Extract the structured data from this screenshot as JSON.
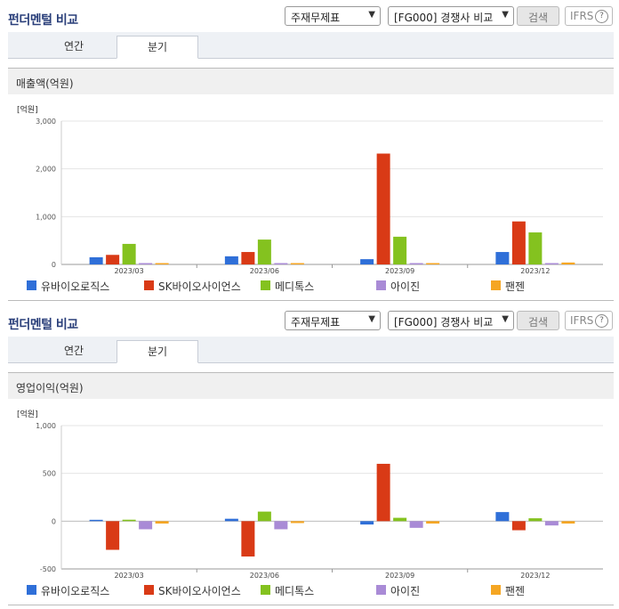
{
  "colors": {
    "series": [
      "#2f6fd8",
      "#d93a16",
      "#84c21f",
      "#a98bd6",
      "#f5a623"
    ]
  },
  "panels": [
    {
      "title": "펀더멘털 비교",
      "select_statement": "주재무제표",
      "select_compare": "[FG000] 경쟁사 비교",
      "search_label": "검색",
      "ifrs_label": "IFRS",
      "ifrs_help": "?",
      "tab_annual": "연간",
      "tab_quarter": "분기",
      "section_title": "매출액(억원)"
    },
    {
      "title": "펀더멘털 비교",
      "select_statement": "주재무제표",
      "select_compare": "[FG000] 경쟁사 비교",
      "search_label": "검색",
      "ifrs_label": "IFRS",
      "ifrs_help": "?",
      "tab_annual": "연간",
      "tab_quarter": "분기",
      "section_title": "영업이익(억원)"
    }
  ],
  "chart_data": [
    {
      "type": "bar",
      "unit_label": "[억원]",
      "categories": [
        "2023/03",
        "2023/06",
        "2023/09",
        "2023/12"
      ],
      "ylim": [
        0,
        3000
      ],
      "yticks": [
        0,
        1000,
        2000,
        3000
      ],
      "ytick_labels": [
        "0",
        "1,000",
        "2,000",
        "3,000"
      ],
      "series": [
        {
          "name": "유바이오로직스",
          "values": [
            150,
            170,
            110,
            260
          ]
        },
        {
          "name": "SK바이오사이언스",
          "values": [
            200,
            260,
            2320,
            900
          ]
        },
        {
          "name": "메디톡스",
          "values": [
            430,
            520,
            580,
            670
          ]
        },
        {
          "name": "아이진",
          "values": [
            0,
            5,
            5,
            0
          ]
        },
        {
          "name": "팬젠",
          "values": [
            10,
            10,
            10,
            40
          ]
        }
      ],
      "legend": "bottom"
    },
    {
      "type": "bar",
      "unit_label": "[억원]",
      "categories": [
        "2023/03",
        "2023/06",
        "2023/09",
        "2023/12"
      ],
      "ylim": [
        -500,
        1000
      ],
      "yticks": [
        -500,
        0,
        500,
        1000
      ],
      "ytick_labels": [
        "-500",
        "0",
        "500",
        "1,000"
      ],
      "series": [
        {
          "name": "유바이오로직스",
          "values": [
            10,
            25,
            -35,
            95
          ]
        },
        {
          "name": "SK바이오사이언스",
          "values": [
            -300,
            -370,
            600,
            -95
          ]
        },
        {
          "name": "메디톡스",
          "values": [
            15,
            100,
            35,
            30
          ]
        },
        {
          "name": "아이진",
          "values": [
            -85,
            -85,
            -70,
            -45
          ]
        },
        {
          "name": "팬젠",
          "values": [
            -25,
            -20,
            -25,
            -25
          ]
        }
      ],
      "legend": "bottom"
    }
  ]
}
